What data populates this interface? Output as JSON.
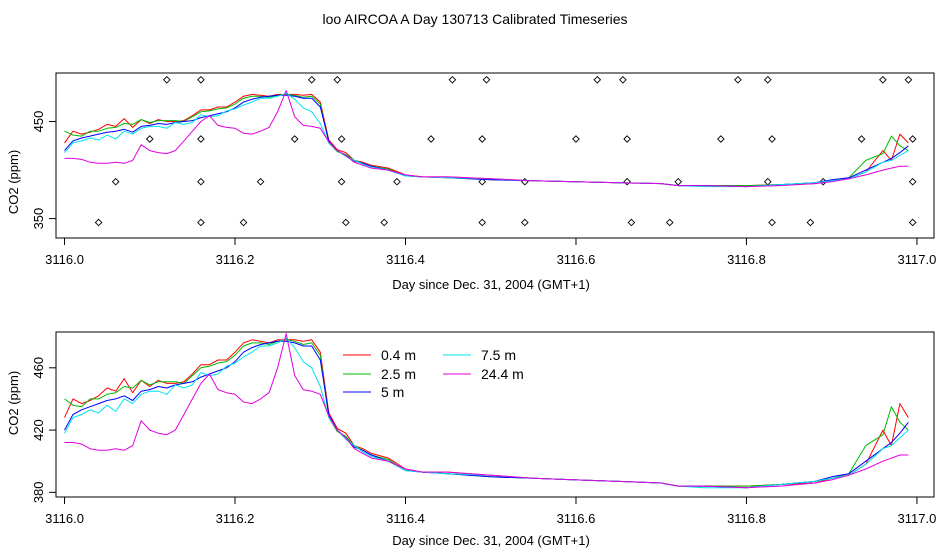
{
  "title": "loo AIRCOA A  Day 130713  Calibrated Timeseries",
  "colors": {
    "0.4 m": "#ff0000",
    "2.5 m": "#00bb00",
    "5 m": "#0000ff",
    "7.5 m": "#00e5ee",
    "24.4 m": "#e000e0",
    "markers": "#000000"
  },
  "chart_data": [
    {
      "type": "line",
      "xlabel": "Day since Dec. 31, 2004 (GMT+1)",
      "ylabel": "CO2 (ppm)",
      "xlim": [
        3115.99,
        3117.02
      ],
      "ylim": [
        330,
        500
      ],
      "xticks": [
        "3116.0",
        "3116.2",
        "3116.4",
        "3116.6",
        "3116.8",
        "3117.0"
      ],
      "xtick_values": [
        3116.0,
        3116.2,
        3116.4,
        3116.6,
        3116.8,
        3117.0
      ],
      "yticks": [
        "350",
        "450"
      ],
      "ytick_values": [
        350,
        450
      ],
      "grid": false,
      "legend": "none",
      "series": [
        {
          "name": "0.4 m",
          "color": "#ff0000",
          "x": [
            3116.0,
            3116.01,
            3116.02,
            3116.03,
            3116.04,
            3116.05,
            3116.06,
            3116.07,
            3116.08,
            3116.09,
            3116.1,
            3116.11,
            3116.12,
            3116.13,
            3116.14,
            3116.15,
            3116.16,
            3116.17,
            3116.18,
            3116.19,
            3116.2,
            3116.21,
            3116.22,
            3116.23,
            3116.24,
            3116.25,
            3116.26,
            3116.27,
            3116.28,
            3116.29,
            3116.3,
            3116.31,
            3116.32,
            3116.33,
            3116.34,
            3116.35,
            3116.36,
            3116.38,
            3116.4,
            3116.42,
            3116.45,
            3116.5,
            3116.55,
            3116.6,
            3116.65,
            3116.7,
            3116.72,
            3116.75,
            3116.8,
            3116.84,
            3116.88,
            3116.9,
            3116.92,
            3116.94,
            3116.96,
            3116.97,
            3116.98,
            3116.99
          ],
          "y": [
            428,
            440,
            437,
            439,
            442,
            447,
            445,
            453,
            444,
            452,
            448,
            452,
            450,
            450,
            451,
            456,
            462,
            462,
            465,
            465,
            470,
            476,
            478,
            477,
            476,
            478,
            478,
            478,
            477,
            478,
            470,
            431,
            421,
            418,
            410,
            408,
            405,
            402,
            395,
            393,
            393,
            391,
            389,
            388,
            387,
            386,
            384,
            384,
            384,
            385,
            386,
            389,
            391,
            398,
            420,
            410,
            437,
            428
          ]
        },
        {
          "name": "2.5 m",
          "color": "#00bb00",
          "x": [
            3116.0,
            3116.01,
            3116.02,
            3116.03,
            3116.04,
            3116.05,
            3116.06,
            3116.07,
            3116.08,
            3116.09,
            3116.1,
            3116.11,
            3116.12,
            3116.13,
            3116.14,
            3116.15,
            3116.16,
            3116.17,
            3116.18,
            3116.19,
            3116.2,
            3116.21,
            3116.22,
            3116.23,
            3116.24,
            3116.25,
            3116.26,
            3116.27,
            3116.28,
            3116.29,
            3116.3,
            3116.31,
            3116.32,
            3116.33,
            3116.34,
            3116.35,
            3116.36,
            3116.38,
            3116.4,
            3116.42,
            3116.45,
            3116.5,
            3116.55,
            3116.6,
            3116.65,
            3116.7,
            3116.72,
            3116.75,
            3116.8,
            3116.84,
            3116.88,
            3116.9,
            3116.92,
            3116.94,
            3116.96,
            3116.97,
            3116.98,
            3116.99
          ],
          "y": [
            440,
            436,
            435,
            440,
            440,
            443,
            444,
            448,
            447,
            452,
            449,
            451,
            451,
            451,
            450,
            455,
            460,
            461,
            463,
            464,
            468,
            474,
            476,
            476,
            475,
            477,
            478,
            477,
            475,
            476,
            468,
            428,
            419,
            416,
            410,
            407,
            404,
            401,
            394,
            393,
            392,
            390,
            389,
            388,
            387,
            386,
            384,
            384,
            384,
            385,
            387,
            389,
            392,
            410,
            417,
            435,
            425,
            420
          ]
        },
        {
          "name": "5 m",
          "color": "#0000ff",
          "x": [
            3116.0,
            3116.01,
            3116.02,
            3116.03,
            3116.04,
            3116.05,
            3116.06,
            3116.07,
            3116.08,
            3116.09,
            3116.1,
            3116.11,
            3116.12,
            3116.13,
            3116.14,
            3116.15,
            3116.16,
            3116.17,
            3116.18,
            3116.19,
            3116.2,
            3116.21,
            3116.22,
            3116.23,
            3116.24,
            3116.25,
            3116.26,
            3116.27,
            3116.28,
            3116.29,
            3116.3,
            3116.31,
            3116.32,
            3116.33,
            3116.34,
            3116.35,
            3116.36,
            3116.38,
            3116.4,
            3116.42,
            3116.45,
            3116.5,
            3116.55,
            3116.6,
            3116.65,
            3116.7,
            3116.72,
            3116.75,
            3116.8,
            3116.84,
            3116.88,
            3116.9,
            3116.92,
            3116.94,
            3116.96,
            3116.97,
            3116.98,
            3116.99
          ],
          "y": [
            420,
            430,
            433,
            435,
            437,
            439,
            440,
            442,
            439,
            445,
            446,
            448,
            447,
            449,
            450,
            451,
            454,
            456,
            458,
            460,
            464,
            470,
            473,
            475,
            476,
            477,
            477,
            476,
            474,
            474,
            465,
            430,
            420,
            415,
            409,
            407,
            404,
            400,
            394,
            393,
            392,
            390,
            389,
            388,
            387,
            386,
            384,
            384,
            383,
            385,
            387,
            390,
            392,
            400,
            408,
            412,
            418,
            425
          ]
        },
        {
          "name": "7.5 m",
          "color": "#00e5ee",
          "x": [
            3116.0,
            3116.01,
            3116.02,
            3116.03,
            3116.04,
            3116.05,
            3116.06,
            3116.07,
            3116.08,
            3116.09,
            3116.1,
            3116.11,
            3116.12,
            3116.13,
            3116.14,
            3116.15,
            3116.16,
            3116.17,
            3116.18,
            3116.19,
            3116.2,
            3116.21,
            3116.22,
            3116.23,
            3116.24,
            3116.25,
            3116.26,
            3116.27,
            3116.28,
            3116.29,
            3116.3,
            3116.31,
            3116.32,
            3116.33,
            3116.34,
            3116.35,
            3116.36,
            3116.38,
            3116.4,
            3116.42,
            3116.45,
            3116.5,
            3116.55,
            3116.6,
            3116.65,
            3116.7,
            3116.72,
            3116.75,
            3116.8,
            3116.84,
            3116.88,
            3116.9,
            3116.92,
            3116.94,
            3116.96,
            3116.97,
            3116.98,
            3116.99
          ],
          "y": [
            418,
            428,
            430,
            433,
            431,
            436,
            432,
            440,
            437,
            443,
            445,
            445,
            443,
            449,
            447,
            449,
            457,
            455,
            456,
            461,
            463,
            467,
            470,
            474,
            474,
            476,
            479,
            473,
            464,
            460,
            448,
            428,
            420,
            414,
            410,
            406,
            403,
            400,
            394,
            393,
            392,
            391,
            389,
            388,
            387,
            386,
            384,
            383,
            383,
            385,
            387,
            389,
            391,
            398,
            408,
            410,
            415,
            420
          ]
        },
        {
          "name": "24.4 m",
          "color": "#e000e0",
          "x": [
            3116.0,
            3116.01,
            3116.02,
            3116.03,
            3116.04,
            3116.05,
            3116.06,
            3116.07,
            3116.08,
            3116.09,
            3116.1,
            3116.11,
            3116.12,
            3116.13,
            3116.14,
            3116.15,
            3116.16,
            3116.17,
            3116.18,
            3116.19,
            3116.2,
            3116.21,
            3116.22,
            3116.23,
            3116.24,
            3116.25,
            3116.26,
            3116.27,
            3116.28,
            3116.29,
            3116.3,
            3116.31,
            3116.32,
            3116.33,
            3116.34,
            3116.35,
            3116.36,
            3116.38,
            3116.4,
            3116.42,
            3116.45,
            3116.5,
            3116.55,
            3116.6,
            3116.65,
            3116.7,
            3116.72,
            3116.75,
            3116.8,
            3116.84,
            3116.88,
            3116.9,
            3116.92,
            3116.94,
            3116.96,
            3116.97,
            3116.98,
            3116.99
          ],
          "y": [
            412,
            412,
            411,
            408,
            407,
            407,
            408,
            407,
            410,
            426,
            420,
            418,
            417,
            420,
            430,
            440,
            450,
            456,
            446,
            444,
            443,
            438,
            437,
            440,
            444,
            460,
            482,
            455,
            446,
            445,
            443,
            429,
            420,
            415,
            408,
            405,
            402,
            400,
            395,
            393,
            393,
            391,
            389,
            388,
            387,
            386,
            384,
            384,
            383,
            384,
            386,
            388,
            391,
            395,
            400,
            402,
            404,
            404
          ]
        }
      ],
      "markers": {
        "symbol": "diamond",
        "x": [
          3116.12,
          3116.16,
          3116.29,
          3116.32,
          3116.455,
          3116.495,
          3116.625,
          3116.655,
          3116.79,
          3116.825,
          3116.96,
          3116.99,
          3116.1,
          3116.16,
          3116.27,
          3116.325,
          3116.43,
          3116.49,
          3116.6,
          3116.66,
          3116.77,
          3116.83,
          3116.935,
          3116.995,
          3116.06,
          3116.16,
          3116.23,
          3116.325,
          3116.39,
          3116.49,
          3116.54,
          3116.66,
          3116.72,
          3116.825,
          3116.89,
          3116.995,
          3116.04,
          3116.16,
          3116.21,
          3116.33,
          3116.375,
          3116.49,
          3116.54,
          3116.665,
          3116.71,
          3116.83,
          3116.875,
          3116.995
        ],
        "y": [
          493,
          493,
          493,
          493,
          493,
          493,
          493,
          493,
          493,
          493,
          493,
          493,
          432,
          432,
          432,
          432,
          432,
          432,
          432,
          432,
          432,
          432,
          432,
          432,
          388,
          388,
          388,
          388,
          388,
          388,
          388,
          388,
          388,
          388,
          388,
          388,
          346,
          346,
          346,
          346,
          346,
          346,
          346,
          346,
          346,
          346,
          346,
          346
        ]
      }
    },
    {
      "type": "line",
      "xlabel": "Day since Dec. 31, 2004 (GMT+1)",
      "ylabel": "CO2 (ppm)",
      "xlim": [
        3115.99,
        3117.02
      ],
      "ylim": [
        377,
        483
      ],
      "xticks": [
        "3116.0",
        "3116.2",
        "3116.4",
        "3116.6",
        "3116.8",
        "3117.0"
      ],
      "xtick_values": [
        3116.0,
        3116.2,
        3116.4,
        3116.6,
        3116.8,
        3117.0
      ],
      "yticks": [
        "380",
        "420",
        "460"
      ],
      "ytick_values": [
        380,
        420,
        460
      ],
      "grid": false,
      "legend": "top-center",
      "series": "same as first panel"
    }
  ]
}
